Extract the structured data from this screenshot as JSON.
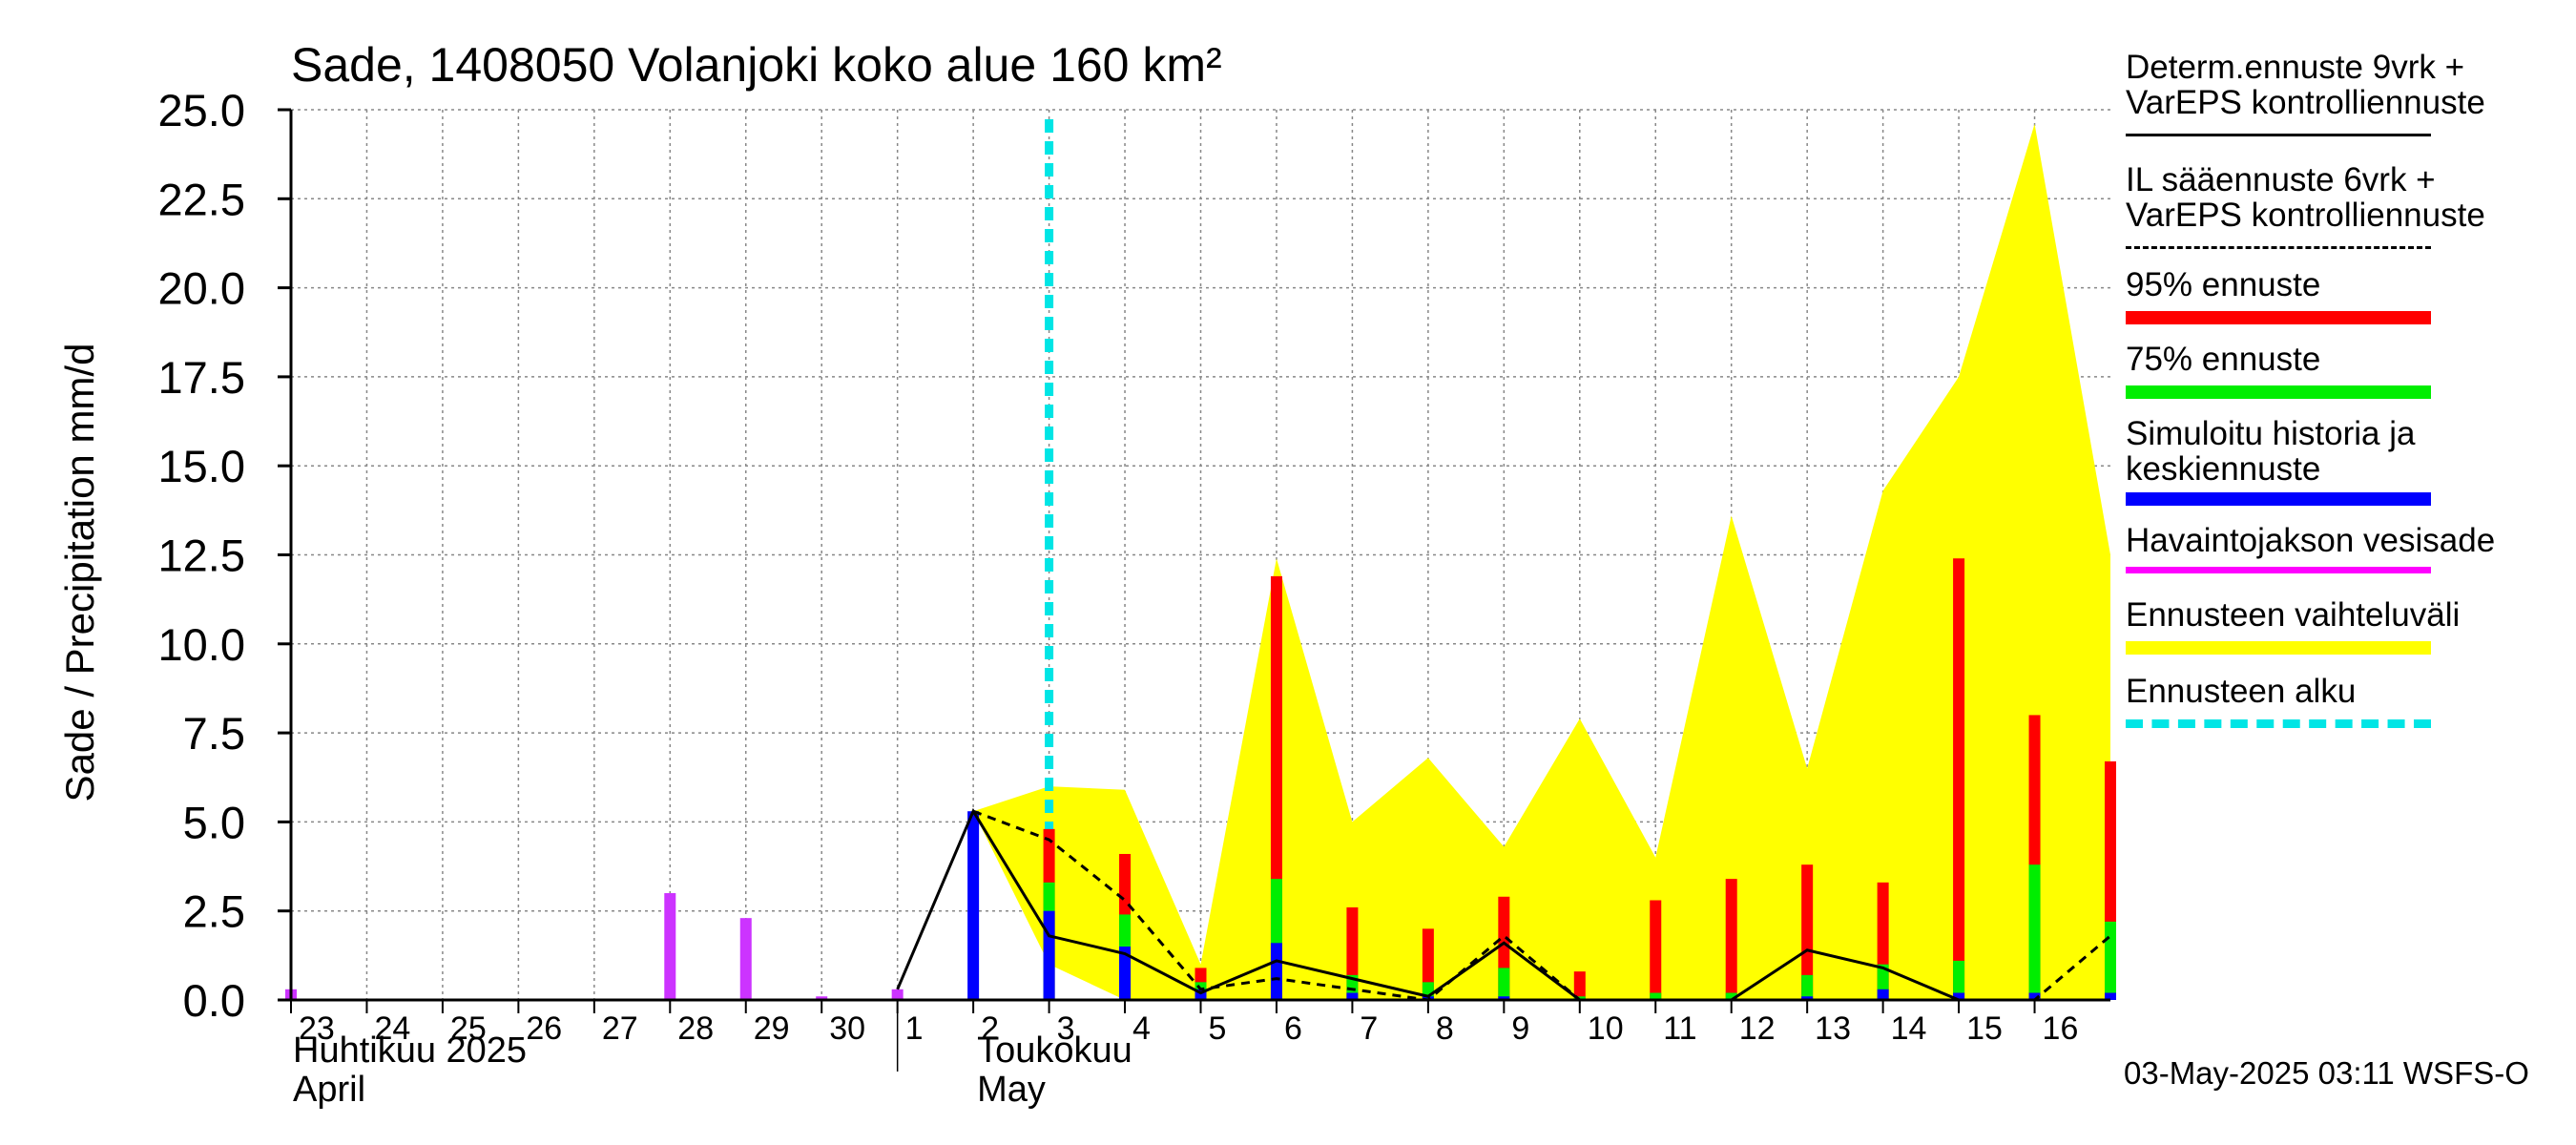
{
  "chart_data": {
    "type": "bar",
    "title": "Sade, 1408050 Volanjoki koko alue 160 km²",
    "ylabel": "Sade / Precipitation   mm/d",
    "ylim": [
      0,
      25
    ],
    "yticks": [
      "0.0",
      "2.5",
      "5.0",
      "7.5",
      "10.0",
      "12.5",
      "15.0",
      "17.5",
      "20.0",
      "22.5",
      "25.0"
    ],
    "x_range": [
      "2025-04-23",
      "2025-05-17"
    ],
    "day_labels": [
      "23",
      "24",
      "25",
      "26",
      "27",
      "28",
      "29",
      "30",
      "1",
      "2",
      "3",
      "4",
      "5",
      "6",
      "7",
      "8",
      "9",
      "10",
      "11",
      "12",
      "13",
      "14",
      "15",
      "16"
    ],
    "month_labels": [
      {
        "fi": "Huhtikuu  2025",
        "en": "April"
      },
      {
        "fi": "Toukokuu",
        "en": "May"
      }
    ],
    "forecast_start": "2025-05-03",
    "observed_precip": [
      {
        "date": "2025-04-23",
        "value": 0.3
      },
      {
        "date": "2025-04-28",
        "value": 3.0
      },
      {
        "date": "2025-04-29",
        "value": 2.3
      },
      {
        "date": "2025-04-30",
        "value": 0.1
      },
      {
        "date": "2025-05-01",
        "value": 0.3
      }
    ],
    "simulated_median": [
      {
        "date": "2025-05-02",
        "value": 5.3
      },
      {
        "date": "2025-05-03",
        "value": 2.5
      },
      {
        "date": "2025-05-04",
        "value": 1.5
      },
      {
        "date": "2025-05-05",
        "value": 0.3
      },
      {
        "date": "2025-05-06",
        "value": 1.6
      },
      {
        "date": "2025-05-07",
        "value": 0.2
      },
      {
        "date": "2025-05-08",
        "value": 0.1
      },
      {
        "date": "2025-05-09",
        "value": 0.1
      },
      {
        "date": "2025-05-10",
        "value": 0.0
      },
      {
        "date": "2025-05-11",
        "value": 0.0
      },
      {
        "date": "2025-05-12",
        "value": 0.0
      },
      {
        "date": "2025-05-13",
        "value": 0.1
      },
      {
        "date": "2025-05-14",
        "value": 0.3
      },
      {
        "date": "2025-05-15",
        "value": 0.2
      },
      {
        "date": "2025-05-16",
        "value": 0.2
      },
      {
        "date": "2025-05-17",
        "value": 0.2
      }
    ],
    "p75": [
      {
        "date": "2025-05-03",
        "value": 3.3
      },
      {
        "date": "2025-05-04",
        "value": 2.4
      },
      {
        "date": "2025-05-05",
        "value": 0.5
      },
      {
        "date": "2025-05-06",
        "value": 3.4
      },
      {
        "date": "2025-05-07",
        "value": 0.7
      },
      {
        "date": "2025-05-08",
        "value": 0.5
      },
      {
        "date": "2025-05-09",
        "value": 0.9
      },
      {
        "date": "2025-05-10",
        "value": 0.1
      },
      {
        "date": "2025-05-11",
        "value": 0.2
      },
      {
        "date": "2025-05-12",
        "value": 0.2
      },
      {
        "date": "2025-05-13",
        "value": 0.7
      },
      {
        "date": "2025-05-14",
        "value": 1.0
      },
      {
        "date": "2025-05-15",
        "value": 1.1
      },
      {
        "date": "2025-05-16",
        "value": 3.8
      },
      {
        "date": "2025-05-17",
        "value": 2.2
      }
    ],
    "p95": [
      {
        "date": "2025-05-03",
        "value": 4.8
      },
      {
        "date": "2025-05-04",
        "value": 4.1
      },
      {
        "date": "2025-05-05",
        "value": 0.9
      },
      {
        "date": "2025-05-06",
        "value": 11.9
      },
      {
        "date": "2025-05-07",
        "value": 2.6
      },
      {
        "date": "2025-05-08",
        "value": 2.0
      },
      {
        "date": "2025-05-09",
        "value": 2.9
      },
      {
        "date": "2025-05-10",
        "value": 0.8
      },
      {
        "date": "2025-05-11",
        "value": 2.8
      },
      {
        "date": "2025-05-12",
        "value": 3.4
      },
      {
        "date": "2025-05-13",
        "value": 3.8
      },
      {
        "date": "2025-05-14",
        "value": 3.3
      },
      {
        "date": "2025-05-15",
        "value": 12.4
      },
      {
        "date": "2025-05-16",
        "value": 8.0
      },
      {
        "date": "2025-05-17",
        "value": 6.7
      }
    ],
    "range_upper": [
      {
        "date": "2025-05-02",
        "value": 5.3
      },
      {
        "date": "2025-05-03",
        "value": 6.0
      },
      {
        "date": "2025-05-04",
        "value": 5.9
      },
      {
        "date": "2025-05-05",
        "value": 1.0
      },
      {
        "date": "2025-05-06",
        "value": 12.4
      },
      {
        "date": "2025-05-07",
        "value": 5.0
      },
      {
        "date": "2025-05-08",
        "value": 6.8
      },
      {
        "date": "2025-05-09",
        "value": 4.3
      },
      {
        "date": "2025-05-10",
        "value": 7.9
      },
      {
        "date": "2025-05-11",
        "value": 4.0
      },
      {
        "date": "2025-05-12",
        "value": 13.6
      },
      {
        "date": "2025-05-13",
        "value": 6.5
      },
      {
        "date": "2025-05-14",
        "value": 14.3
      },
      {
        "date": "2025-05-15",
        "value": 17.5
      },
      {
        "date": "2025-05-16",
        "value": 24.6
      },
      {
        "date": "2025-05-17",
        "value": 12.5
      }
    ],
    "range_lower": [
      {
        "date": "2025-05-02",
        "value": 5.3
      },
      {
        "date": "2025-05-03",
        "value": 1.0
      },
      {
        "date": "2025-05-04",
        "value": 0.0
      },
      {
        "date": "2025-05-05",
        "value": 0.0
      },
      {
        "date": "2025-05-17",
        "value": 0.0
      }
    ],
    "deterministic_line": [
      {
        "date": "2025-05-01",
        "value": 0.3
      },
      {
        "date": "2025-05-02",
        "value": 5.3
      },
      {
        "date": "2025-05-03",
        "value": 1.8
      },
      {
        "date": "2025-05-04",
        "value": 1.3
      },
      {
        "date": "2025-05-05",
        "value": 0.2
      },
      {
        "date": "2025-05-06",
        "value": 1.1
      },
      {
        "date": "2025-05-07",
        "value": 0.6
      },
      {
        "date": "2025-05-08",
        "value": 0.1
      },
      {
        "date": "2025-05-09",
        "value": 1.6
      },
      {
        "date": "2025-05-10",
        "value": 0.0
      },
      {
        "date": "2025-05-11",
        "value": 0.0
      },
      {
        "date": "2025-05-12",
        "value": 0.0
      },
      {
        "date": "2025-05-13",
        "value": 1.4
      },
      {
        "date": "2025-05-14",
        "value": 0.9
      },
      {
        "date": "2025-05-15",
        "value": 0.0
      },
      {
        "date": "2025-05-16",
        "value": 0.0
      },
      {
        "date": "2025-05-17",
        "value": 0.0
      }
    ],
    "il_dashed_line": [
      {
        "date": "2025-05-02",
        "value": 5.3
      },
      {
        "date": "2025-05-03",
        "value": 4.5
      },
      {
        "date": "2025-05-04",
        "value": 2.8
      },
      {
        "date": "2025-05-05",
        "value": 0.3
      },
      {
        "date": "2025-05-06",
        "value": 0.6
      },
      {
        "date": "2025-05-07",
        "value": 0.3
      },
      {
        "date": "2025-05-08",
        "value": 0.0
      },
      {
        "date": "2025-05-09",
        "value": 1.8
      },
      {
        "date": "2025-05-10",
        "value": 0.0
      },
      {
        "date": "2025-05-16",
        "value": 0.0
      },
      {
        "date": "2025-05-17",
        "value": 1.8
      }
    ],
    "colors": {
      "p95": "#ff0000",
      "p75": "#00ee00",
      "median": "#0000ff",
      "observed": "#cc33ff",
      "range": "#ffff00",
      "forecast_start": "#00e5e5",
      "grid": "#888888"
    }
  },
  "legend": [
    {
      "label": "Determ.ennuste 9vrk +\nVarEPS kontrolliennuste",
      "style": "solid-black"
    },
    {
      "label": "IL sääennuste 6vrk  +\n  VarEPS kontrolliennuste",
      "style": "dashed-black"
    },
    {
      "label": "95% ennuste",
      "style": "red"
    },
    {
      "label": "75% ennuste",
      "style": "green"
    },
    {
      "label": "Simuloitu historia ja\nkeskiennuste",
      "style": "blue"
    },
    {
      "label": "Havaintojakson vesisade",
      "style": "magenta"
    },
    {
      "label": "Ennusteen vaihteluväli",
      "style": "yellow"
    },
    {
      "label": "Ennusteen alku",
      "style": "cyan-dashed"
    }
  ],
  "footer": "03-May-2025 03:11 WSFS-O"
}
